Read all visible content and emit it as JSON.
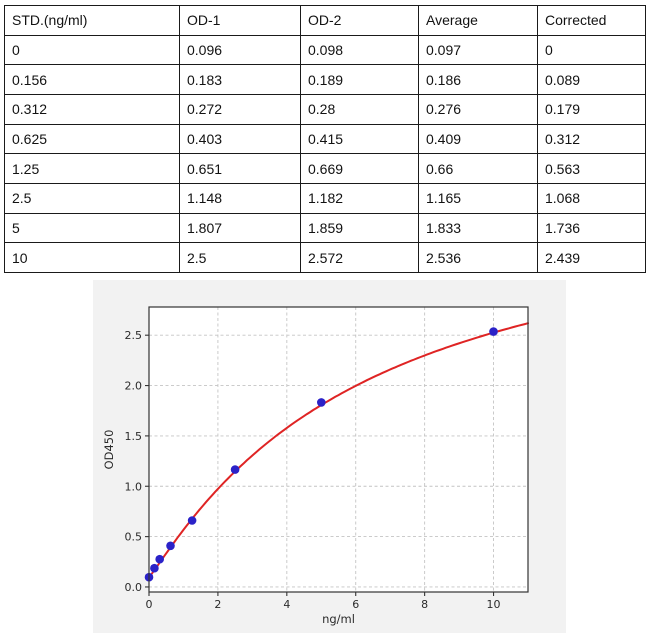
{
  "table": {
    "headers": [
      "STD.(ng/ml)",
      "OD-1",
      "OD-2",
      "Average",
      "Corrected"
    ],
    "rows": [
      [
        "0",
        "0.096",
        "0.098",
        "0.097",
        "0"
      ],
      [
        "0.156",
        "0.183",
        "0.189",
        "0.186",
        "0.089"
      ],
      [
        "0.312",
        "0.272",
        "0.28",
        "0.276",
        "0.179"
      ],
      [
        "0.625",
        "0.403",
        "0.415",
        "0.409",
        "0.312"
      ],
      [
        "1.25",
        "0.651",
        "0.669",
        "0.66",
        "0.563"
      ],
      [
        "2.5",
        "1.148",
        "1.182",
        "1.165",
        "1.068"
      ],
      [
        "5",
        "1.807",
        "1.859",
        "1.833",
        "1.736"
      ],
      [
        "10",
        "2.5",
        "2.572",
        "2.536",
        "2.439"
      ]
    ]
  },
  "chart_data": {
    "type": "scatter",
    "title": "",
    "xlabel": "ng/ml",
    "ylabel": "OD450",
    "x": [
      0,
      0.156,
      0.312,
      0.625,
      1.25,
      2.5,
      5,
      10
    ],
    "y": [
      0.097,
      0.186,
      0.276,
      0.409,
      0.66,
      1.165,
      1.833,
      2.536
    ],
    "xlim": [
      0,
      11
    ],
    "ylim": [
      -0.05,
      2.78
    ],
    "xticks": [
      0,
      2,
      4,
      6,
      8,
      10
    ],
    "yticks": [
      0.0,
      0.5,
      1.0,
      1.5,
      2.0,
      2.5
    ],
    "grid": true,
    "legend": "none",
    "fit_curve": {
      "model": "4PL",
      "a": 0.097,
      "b": 1.08,
      "c": 6.3,
      "d": 4.0
    },
    "point_color": "#2b22c8",
    "curve_color": "#df2424",
    "grid_color": "#c4c4c4",
    "spine_color": "#333333",
    "text_color": "#2b2b2b",
    "panel_bg": "#f2f2f2",
    "plot_bg": "#ffffff"
  }
}
